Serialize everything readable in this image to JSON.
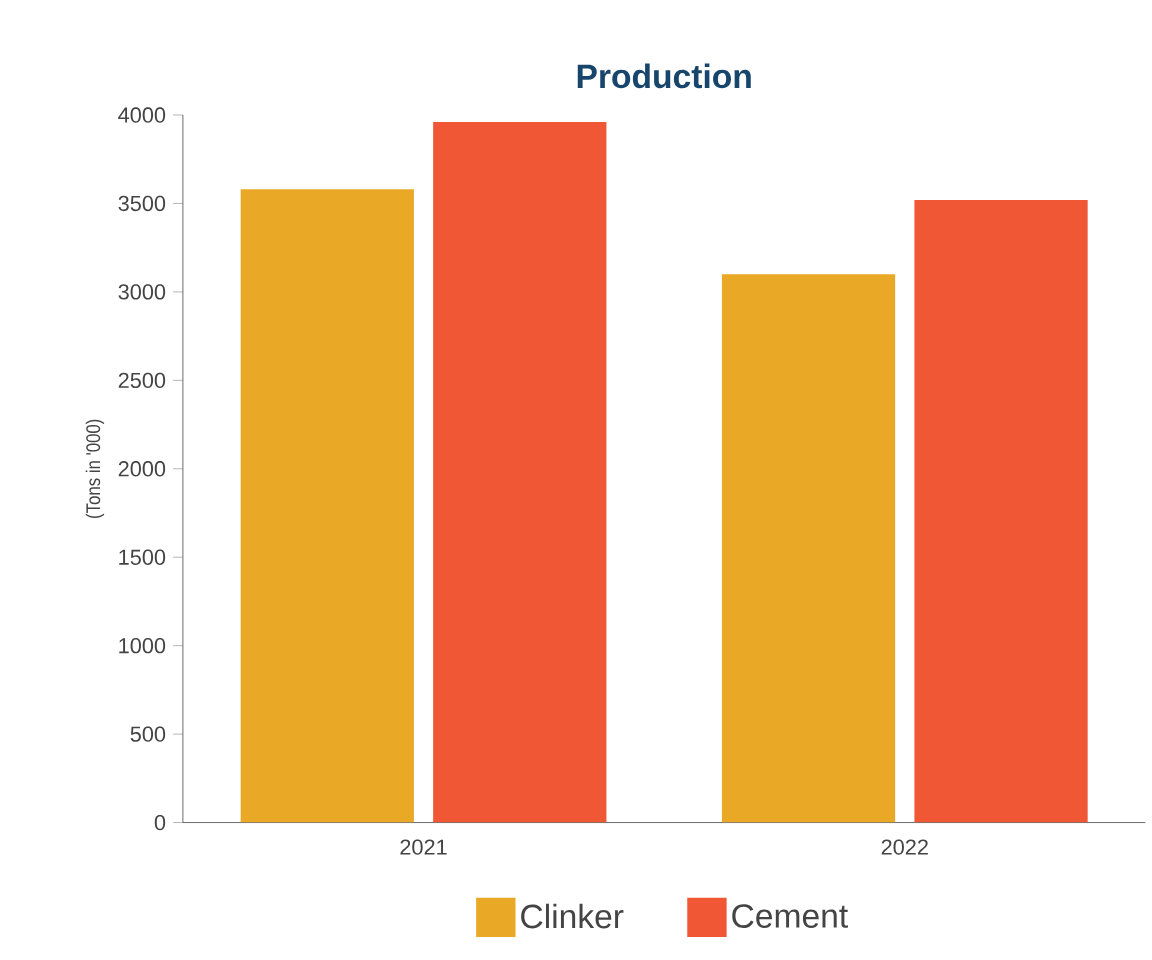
{
  "chart_data": {
    "type": "bar",
    "title": "Production",
    "ylabel": "(Tons in '000)",
    "categories": [
      "2021",
      "2022"
    ],
    "series": [
      {
        "name": "Clinker",
        "color": "#e9a825",
        "values": [
          3580,
          3100
        ]
      },
      {
        "name": "Cement",
        "color": "#f05735",
        "values": [
          3960,
          3520
        ]
      }
    ],
    "ylim": [
      0,
      4000
    ],
    "yticks": [
      0,
      500,
      1000,
      1500,
      2000,
      2500,
      3000,
      3500,
      4000
    ],
    "legend": "bottom"
  }
}
